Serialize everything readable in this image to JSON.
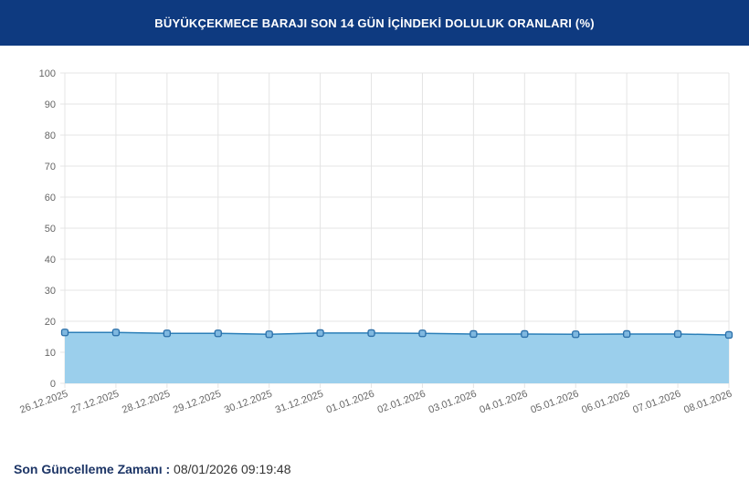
{
  "header": {
    "title": "BÜYÜKÇEKMECE BARAJI SON 14 GÜN İÇİNDEKİ DOLULUK ORANLARI (%)"
  },
  "chart_data": {
    "type": "area",
    "categories": [
      "26.12.2025",
      "27.12.2025",
      "28.12.2025",
      "29.12.2025",
      "30.12.2025",
      "31.12.2025",
      "01.01.2026",
      "02.01.2026",
      "03.01.2026",
      "04.01.2026",
      "05.01.2026",
      "06.01.2026",
      "07.01.2026",
      "08.01.2026"
    ],
    "values": [
      16.4,
      16.4,
      16.1,
      16.1,
      15.8,
      16.2,
      16.2,
      16.1,
      15.9,
      15.9,
      15.8,
      15.9,
      15.9,
      15.6
    ],
    "ylim": [
      0,
      100
    ],
    "yticks": [
      0,
      10,
      20,
      30,
      40,
      50,
      60,
      70,
      80,
      90,
      100
    ],
    "grid": true,
    "colors": {
      "fill": "#9bcfec",
      "line": "#2b7fb8",
      "marker": "#3a86c4"
    }
  },
  "footer": {
    "label": "Son Güncelleme Zamanı :",
    "value": "08/01/2026 09:19:48"
  }
}
